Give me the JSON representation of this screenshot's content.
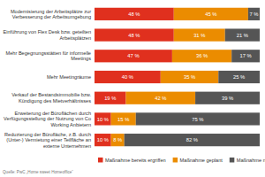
{
  "chart_data": {
    "type": "bar",
    "orientation": "horizontal",
    "stacked": true,
    "data_labels": true,
    "tick_labels": false,
    "legend": "bottom",
    "xlim": [
      0,
      100
    ],
    "categories": [
      "Modernisierung der Arbeitsplätze zur Verbesserung der Arbeitsumgebung",
      "Einführung von Flex Desk bzw. geteilten Arbeitsplätzen",
      "Mehr Begegnungsstätten für informelle Meetings",
      "Mehr Meetingräume",
      "Verkauf der Bestandsimmobilie bzw. Kündigung des Mietverhältnisses",
      "Erweiterung der Büroflächen durch Verfügungsstellung der Nutzung von Co Working Anbietern",
      "Reduzierung der Bürofläche, z.B. durch (Unter-) Vermietung einer Teilfläche an externe Unternehmen"
    ],
    "series": [
      {
        "name": "Maßnahme bereits ergriffen",
        "color": "#e0301e",
        "values": [
          48,
          48,
          47,
          40,
          19,
          10,
          10
        ],
        "value_labels": [
          "48 %",
          "48 %",
          "47 %",
          "40 %",
          "19 %",
          "10 %",
          "10 %"
        ]
      },
      {
        "name": "Maßnahme geplant",
        "color": "#eb8c00",
        "values": [
          45,
          31,
          36,
          35,
          42,
          15,
          8
        ],
        "value_labels": [
          "45 %",
          "31 %",
          "36 %",
          "35 %",
          "42 %",
          "15 %",
          "8 %"
        ]
      },
      {
        "name": "Maßnahme nicht geplant",
        "color": "#555555",
        "values": [
          7,
          21,
          17,
          25,
          39,
          75,
          82
        ],
        "value_labels": [
          "7 %",
          "21 %",
          "17 %",
          "25 %",
          "39 %",
          "75 %",
          "82 %"
        ]
      }
    ],
    "source": "Quelle: PwC „Home sweet Homeoffice“"
  }
}
